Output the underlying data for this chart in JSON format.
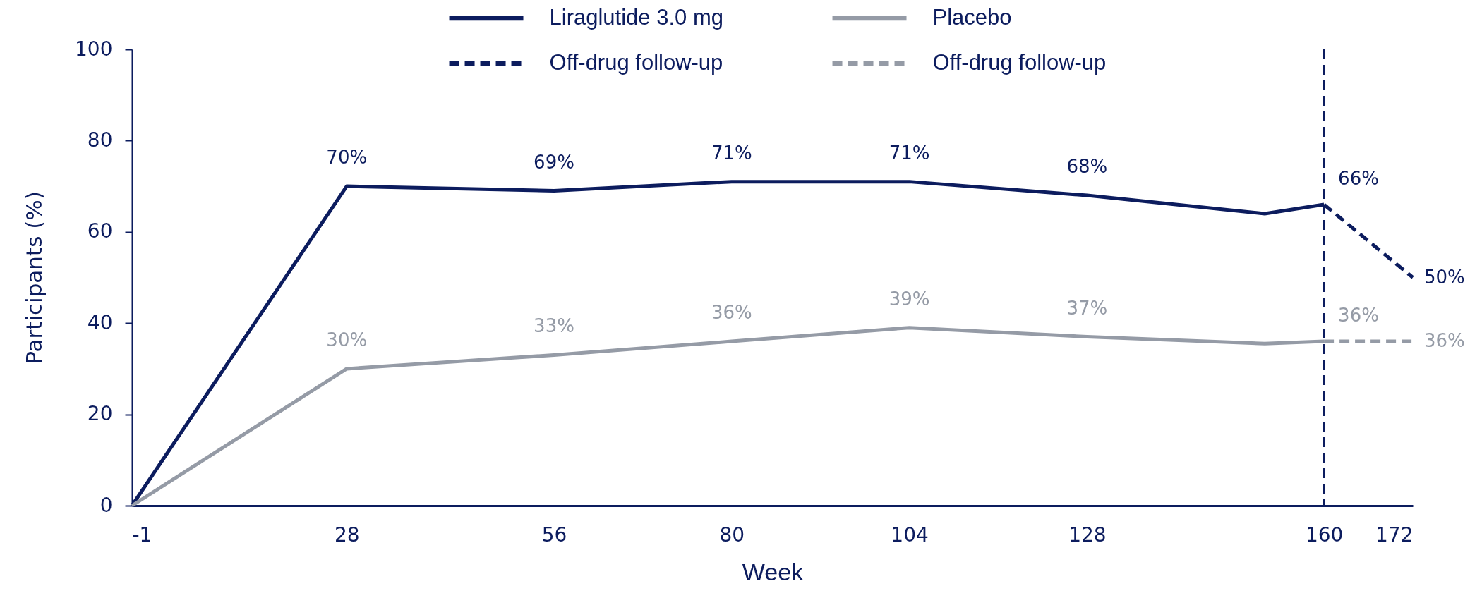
{
  "chart_data": {
    "type": "line",
    "xlabel": "Week",
    "ylabel": "Participants (%)",
    "xlim": [
      -1,
      172
    ],
    "xticks": [
      -1,
      28,
      56,
      80,
      104,
      128,
      160,
      172
    ],
    "ylim": [
      0,
      100
    ],
    "yticks": [
      0,
      20,
      40,
      60,
      80,
      100
    ],
    "legend": "top",
    "series": [
      {
        "name": "Liraglutide 3.0 mg",
        "color": "#0c1c5e",
        "x": [
          -1,
          28,
          56,
          80,
          104,
          128,
          152,
          160
        ],
        "values": [
          0,
          70,
          69,
          71,
          71,
          68,
          64,
          66
        ],
        "value_labels": [
          null,
          "70%",
          "69%",
          "71%",
          "71%",
          "68%",
          null,
          "66%"
        ]
      },
      {
        "name": "Placebo",
        "color": "#959ba6",
        "x": [
          -1,
          28,
          56,
          80,
          104,
          128,
          152,
          160
        ],
        "values": [
          0,
          30,
          33,
          36,
          39,
          37,
          35.5,
          36
        ],
        "value_labels": [
          null,
          "30%",
          "33%",
          "36%",
          "39%",
          "37%",
          null,
          "36%"
        ]
      },
      {
        "name": "Off-drug follow-up",
        "color": "#0c1c5e",
        "line_style": "dashed",
        "x": [
          160,
          172
        ],
        "values": [
          66,
          50
        ],
        "value_labels": [
          null,
          "50%"
        ]
      },
      {
        "name": "Off-drug follow-up",
        "color": "#959ba6",
        "line_style": "dashed",
        "x": [
          160,
          172
        ],
        "values": [
          36,
          36
        ],
        "value_labels": [
          null,
          "36%"
        ]
      }
    ],
    "ref_lines": [
      {
        "axis": "x",
        "value": 160,
        "color": "#0c1c5e",
        "line_style": "dashed"
      }
    ]
  }
}
